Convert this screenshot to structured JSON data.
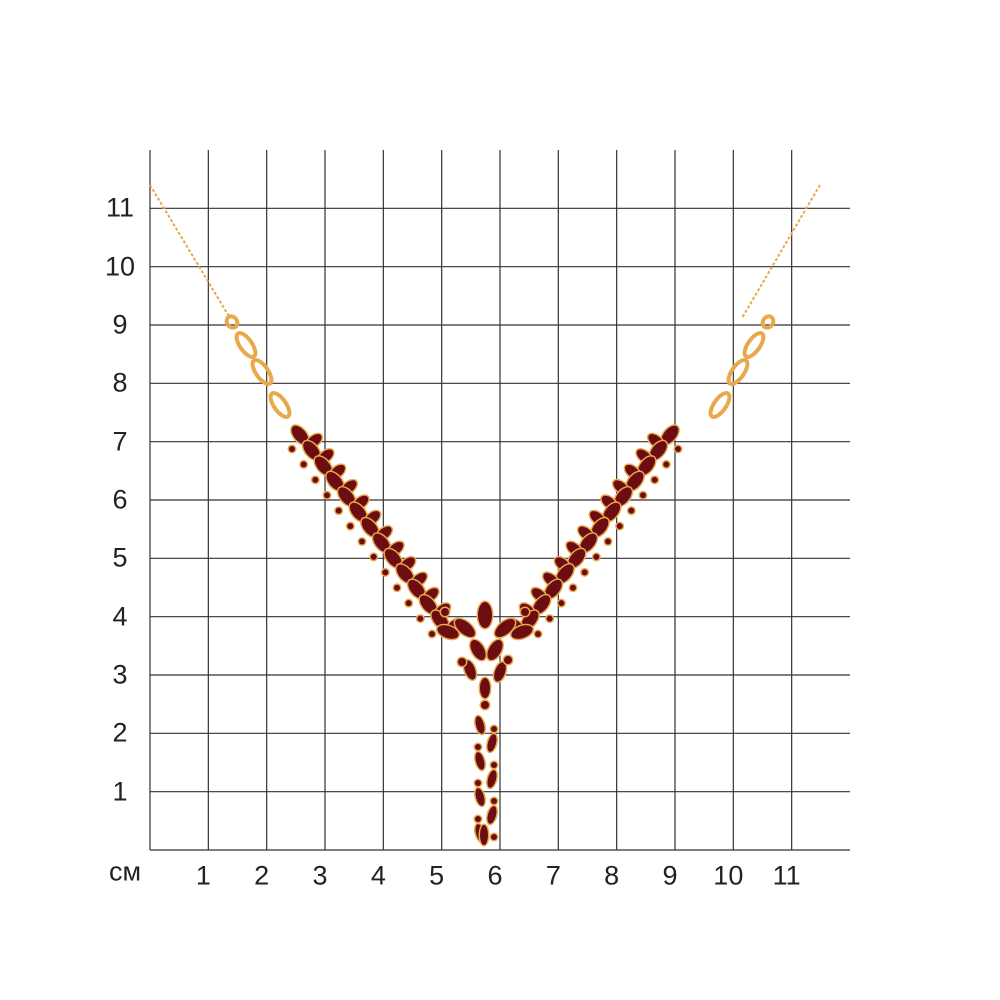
{
  "unit_label": "см",
  "x_labels": [
    "1",
    "2",
    "3",
    "4",
    "5",
    "6",
    "7",
    "8",
    "9",
    "10",
    "11"
  ],
  "y_labels": [
    "1",
    "2",
    "3",
    "4",
    "5",
    "6",
    "7",
    "8",
    "9",
    "10",
    "11"
  ],
  "colors": {
    "grid": "#333333",
    "gold": "#e8a84c",
    "garnet": "#6b0d12",
    "background": "#ffffff"
  },
  "subject": "necklace-icon"
}
